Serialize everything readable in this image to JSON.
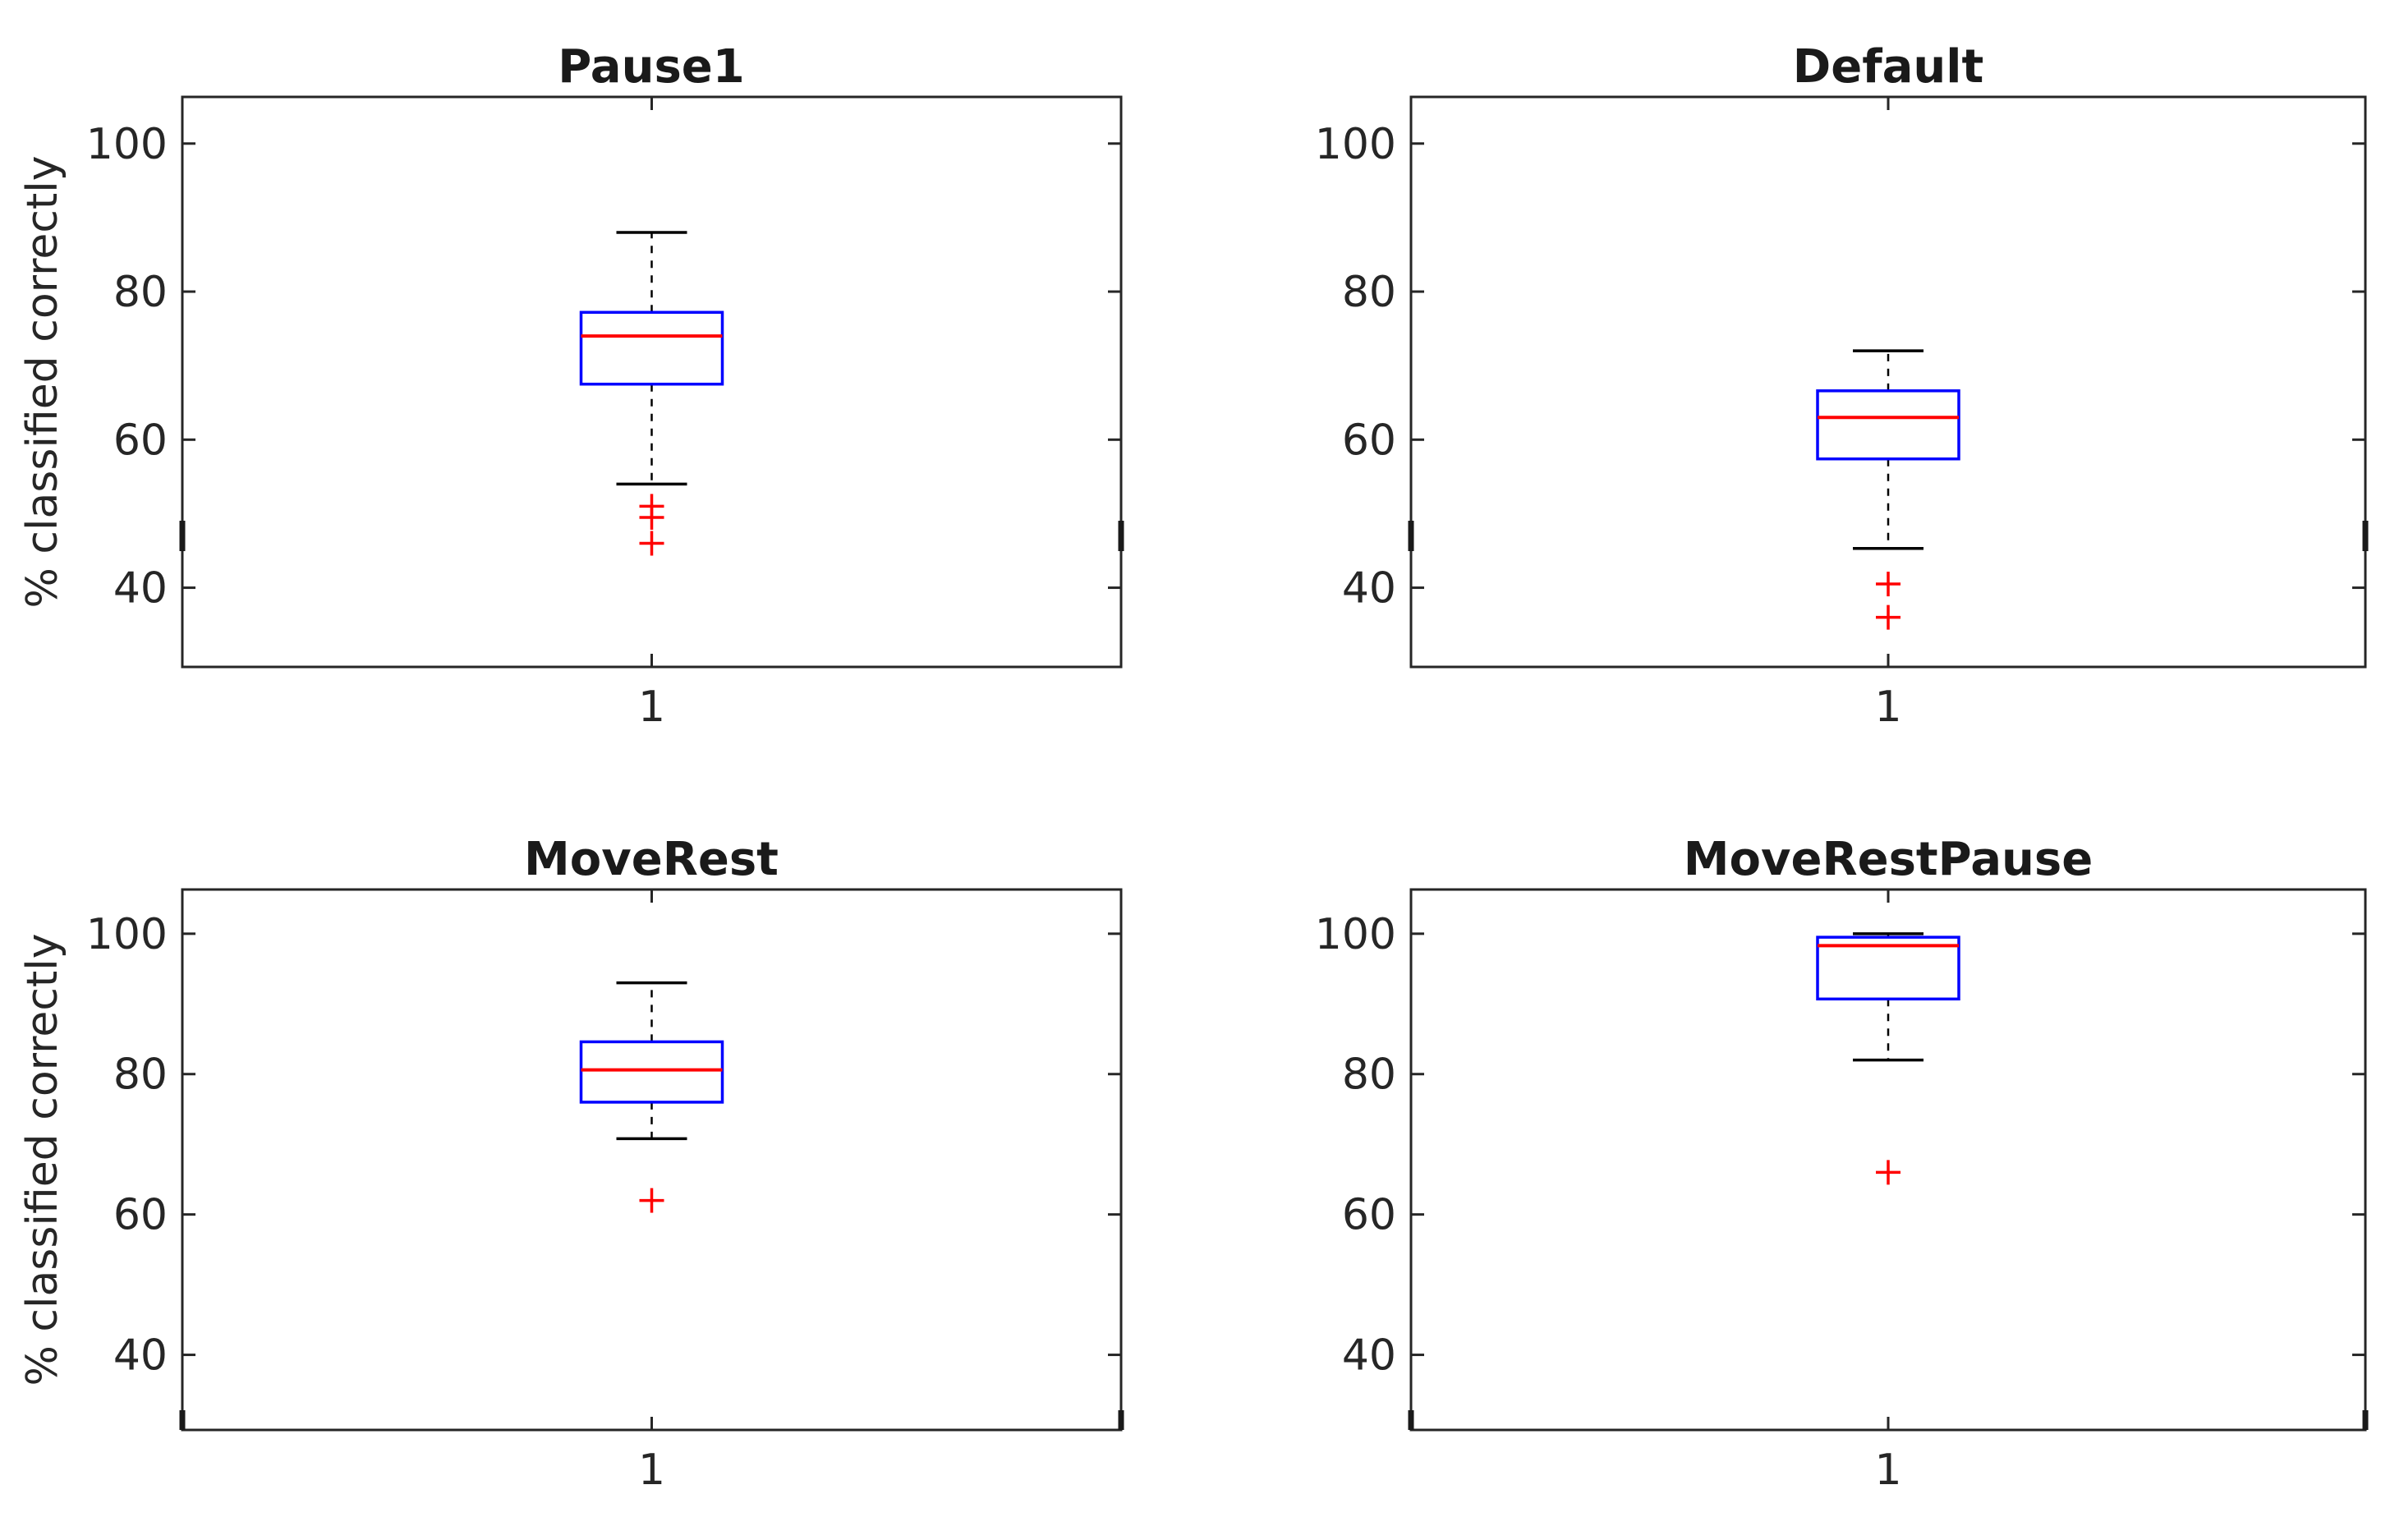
{
  "figure": {
    "ylabel": "% classified correctly",
    "xtick_label": "1",
    "yticks": [
      40,
      60,
      80,
      100
    ],
    "ylim": [
      29.3,
      106.3
    ],
    "colors": {
      "box": "#0000FF",
      "median": "#FF0000",
      "outlier": "#FF0000",
      "whisker": "#000000",
      "axis": "#262626",
      "title": "#1A1A1A",
      "background": "#FFFFFF"
    }
  },
  "chart_data": [
    {
      "type": "boxplot",
      "title": "Pause1",
      "x_categories": [
        "1"
      ],
      "ylabel": "% classified correctly",
      "yticks": [
        40,
        60,
        80,
        100
      ],
      "ylim": [
        29.3,
        106.3
      ],
      "grid": false,
      "series": [
        {
          "name": "1",
          "median": 74,
          "q1": 67.5,
          "q3": 77.2,
          "whisker_low": 54,
          "whisker_high": 88,
          "outliers": [
            51,
            49.5,
            46
          ]
        }
      ]
    },
    {
      "type": "boxplot",
      "title": "Default",
      "x_categories": [
        "1"
      ],
      "ylabel": "",
      "yticks": [
        40,
        60,
        80,
        100
      ],
      "ylim": [
        29.3,
        106.3
      ],
      "grid": false,
      "series": [
        {
          "name": "1",
          "median": 63,
          "q1": 57.4,
          "q3": 66.6,
          "whisker_low": 45.3,
          "whisker_high": 72,
          "outliers": [
            40.5,
            36
          ]
        }
      ]
    },
    {
      "type": "boxplot",
      "title": "MoveRest",
      "x_categories": [
        "1"
      ],
      "ylabel": "% classified correctly",
      "yticks": [
        40,
        60,
        80,
        100
      ],
      "ylim": [
        29.3,
        106.3
      ],
      "grid": false,
      "series": [
        {
          "name": "1",
          "median": 80.6,
          "q1": 76,
          "q3": 84.6,
          "whisker_low": 70.8,
          "whisker_high": 93,
          "outliers": [
            62
          ]
        }
      ]
    },
    {
      "type": "boxplot",
      "title": "MoveRestPause",
      "x_categories": [
        "1"
      ],
      "ylabel": "",
      "yticks": [
        40,
        60,
        80,
        100
      ],
      "ylim": [
        29.3,
        106.3
      ],
      "grid": false,
      "series": [
        {
          "name": "1",
          "median": 98.3,
          "q1": 90.7,
          "q3": 99.5,
          "whisker_low": 82,
          "whisker_high": 100,
          "outliers": [
            66
          ]
        }
      ]
    }
  ]
}
